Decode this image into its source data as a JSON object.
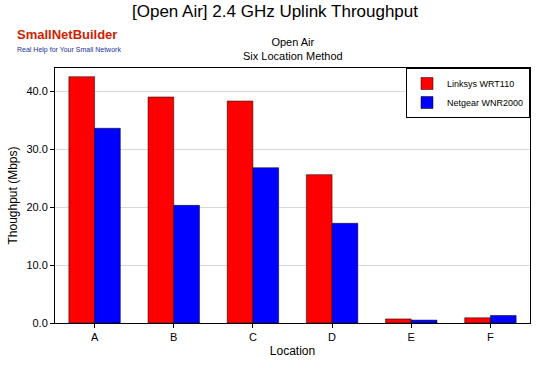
{
  "chart_data": {
    "type": "bar",
    "title": "[Open Air] 2.4 GHz Uplink Throughput",
    "subtitle": [
      "Open Air",
      "Six Location Method"
    ],
    "annotations": [
      "SmallNetBuilder",
      "Real Help for Your Small Network"
    ],
    "x_label": "Location",
    "y_label": "Thoughput (Mbps)",
    "categories": [
      "A",
      "B",
      "C",
      "D",
      "E",
      "F"
    ],
    "series": [
      {
        "name": "Linksys WRT110",
        "color": "#ff0000",
        "values": [
          42.5,
          39.0,
          38.3,
          25.6,
          0.7,
          0.9
        ]
      },
      {
        "name": "Netgear WNR2000",
        "color": "#0000ff",
        "values": [
          33.6,
          20.3,
          26.8,
          17.2,
          0.5,
          1.3
        ]
      }
    ],
    "ylim": [
      0,
      44
    ],
    "yticks": [
      {
        "value": 0,
        "label": "0.0"
      },
      {
        "value": 10,
        "label": "10.0"
      },
      {
        "value": 20,
        "label": "20.0"
      },
      {
        "value": 30,
        "label": "30.0"
      },
      {
        "value": 40,
        "label": "40.0"
      }
    ],
    "grid": true,
    "legend": "upper right"
  }
}
